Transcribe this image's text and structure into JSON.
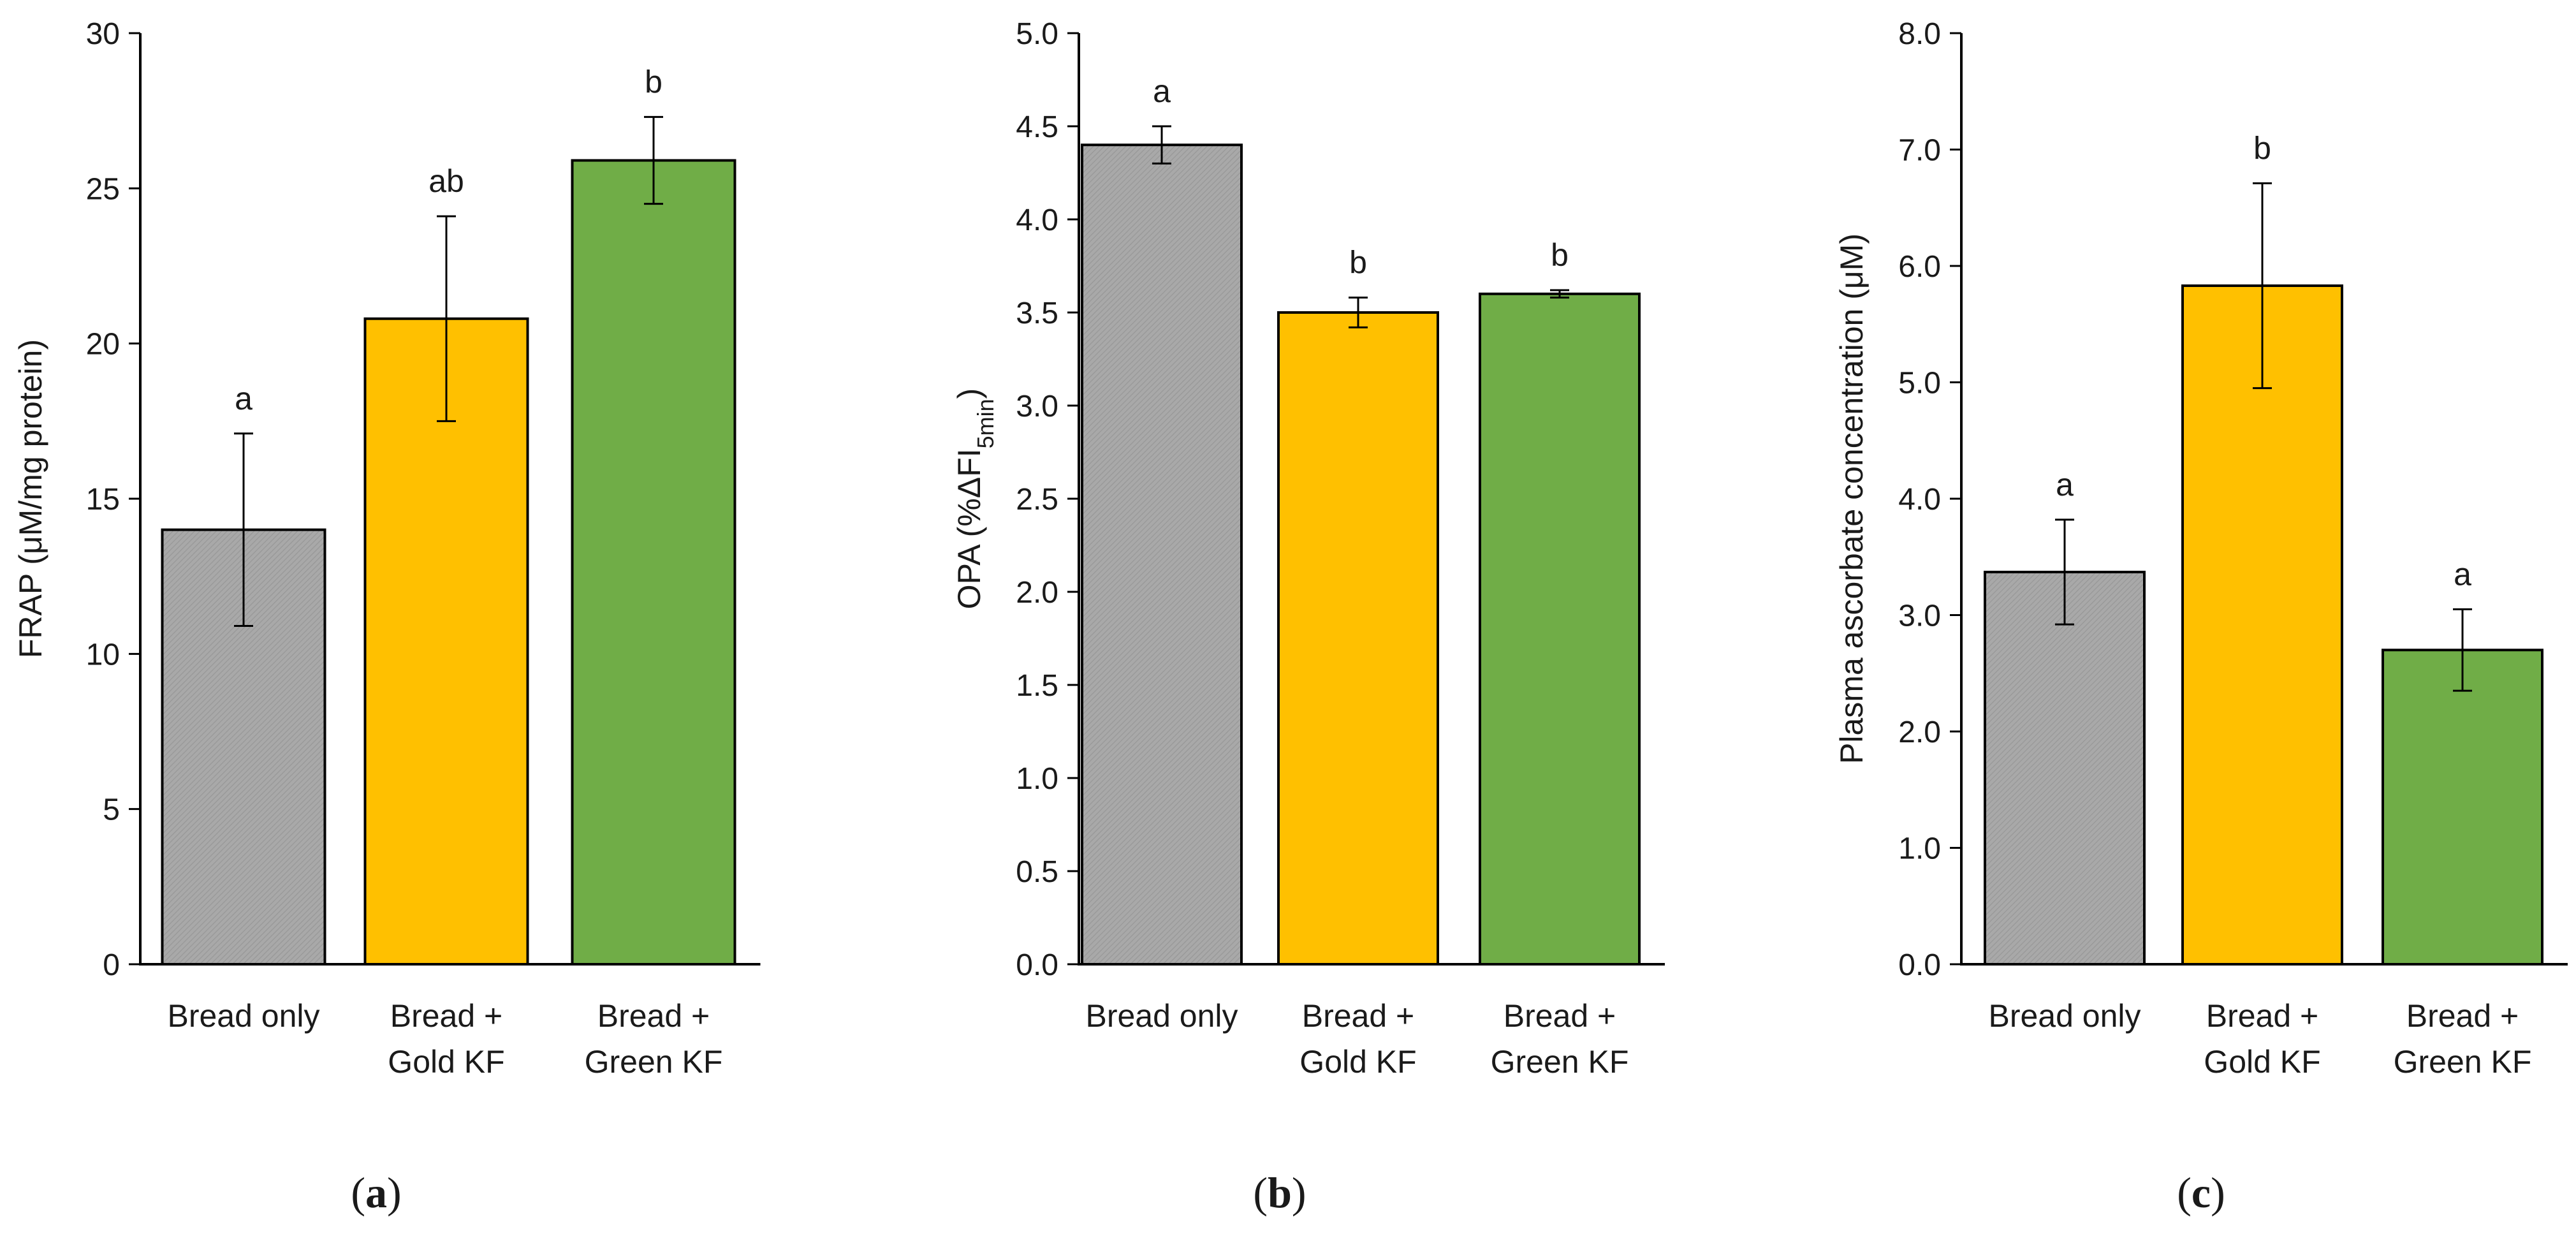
{
  "chart_data": [
    {
      "type": "bar",
      "panel_label": "a",
      "categories": [
        [
          "Bread only"
        ],
        [
          "Bread +",
          "Gold KF"
        ],
        [
          "Bread +",
          "Green KF"
        ]
      ],
      "values": [
        14.0,
        20.8,
        25.9
      ],
      "error_bars": [
        3.1,
        3.3,
        1.4
      ],
      "significance_letters": [
        "a",
        "ab",
        "b"
      ],
      "bar_colors": [
        "#a6a6a6",
        "#ffc000",
        "#70ad47"
      ],
      "ylabel": "FRAP (μM/mg protein)",
      "ylim": [
        0,
        30
      ],
      "yticks": [
        0,
        5,
        10,
        15,
        20,
        25,
        30
      ],
      "ytick_labels": [
        "0",
        "5",
        "10",
        "15",
        "20",
        "25",
        "30"
      ]
    },
    {
      "type": "bar",
      "panel_label": "b",
      "categories": [
        [
          "Bread only"
        ],
        [
          "Bread +",
          "Gold KF"
        ],
        [
          "Bread +",
          "Green KF"
        ]
      ],
      "values": [
        4.4,
        3.5,
        3.6
      ],
      "error_bars": [
        0.1,
        0.08,
        0.02
      ],
      "significance_letters": [
        "a",
        "b",
        "b"
      ],
      "bar_colors": [
        "#a6a6a6",
        "#ffc000",
        "#70ad47"
      ],
      "ylabel": "OPA (%ΔFI",
      "ylabel_sub": "5min",
      "ylabel_end": ")",
      "ylim": [
        0,
        5
      ],
      "yticks": [
        0,
        0.5,
        1,
        1.5,
        2,
        2.5,
        3,
        3.5,
        4,
        4.5,
        5
      ],
      "ytick_labels": [
        "0.0",
        "0.5",
        "1.0",
        "1.5",
        "2.0",
        "2.5",
        "3.0",
        "3.5",
        "4.0",
        "4.5",
        "5.0"
      ]
    },
    {
      "type": "bar",
      "panel_label": "c",
      "categories": [
        [
          "Bread only"
        ],
        [
          "Bread +",
          "Gold KF"
        ],
        [
          "Bread +",
          "Green KF"
        ]
      ],
      "values": [
        3.37,
        5.83,
        2.7
      ],
      "error_bars": [
        0.45,
        0.88,
        0.35
      ],
      "significance_letters": [
        "a",
        "b",
        "a"
      ],
      "bar_colors": [
        "#a6a6a6",
        "#ffc000",
        "#70ad47"
      ],
      "ylabel": "Plasma ascorbate concentration (μM)",
      "ylim": [
        0,
        8
      ],
      "yticks": [
        0,
        1,
        2,
        3,
        4,
        5,
        6,
        7,
        8
      ],
      "ytick_labels": [
        "0.0",
        "1.0",
        "2.0",
        "3.0",
        "4.0",
        "5.0",
        "6.0",
        "7.0",
        "8.0"
      ]
    }
  ]
}
